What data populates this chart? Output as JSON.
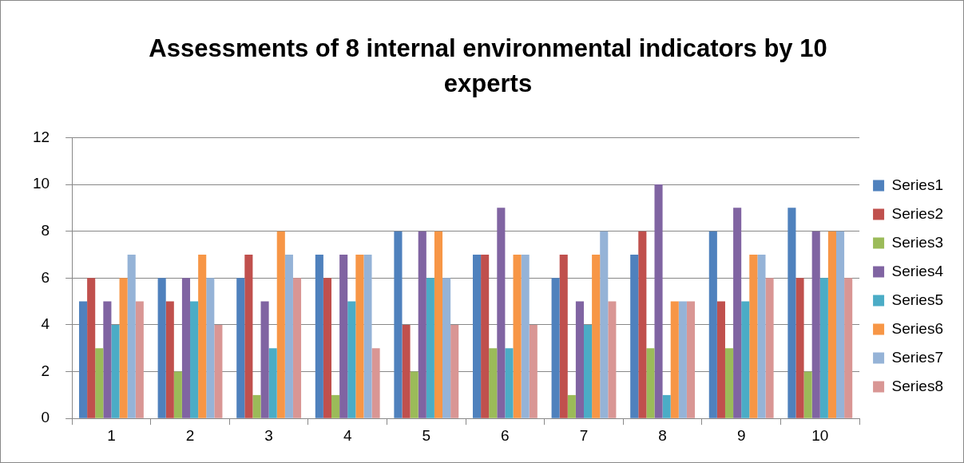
{
  "chart_data": {
    "type": "bar",
    "title": "Assessments of 8 internal environmental indicators by 10 experts",
    "categories": [
      "1",
      "2",
      "3",
      "4",
      "5",
      "6",
      "7",
      "8",
      "9",
      "10"
    ],
    "series": [
      {
        "name": "Series1",
        "color": "#4f81bd",
        "values": [
          5,
          6,
          6,
          7,
          8,
          7,
          6,
          7,
          8,
          9
        ]
      },
      {
        "name": "Series2",
        "color": "#c0504d",
        "values": [
          6,
          5,
          7,
          6,
          4,
          7,
          7,
          8,
          5,
          6
        ]
      },
      {
        "name": "Series3",
        "color": "#9bbb59",
        "values": [
          3,
          2,
          1,
          1,
          2,
          3,
          1,
          3,
          3,
          2
        ]
      },
      {
        "name": "Series4",
        "color": "#8064a2",
        "values": [
          5,
          6,
          5,
          7,
          8,
          9,
          5,
          10,
          9,
          8
        ]
      },
      {
        "name": "Series5",
        "color": "#4bacc6",
        "values": [
          4,
          5,
          3,
          5,
          6,
          3,
          4,
          1,
          5,
          6
        ]
      },
      {
        "name": "Series6",
        "color": "#f79646",
        "values": [
          6,
          7,
          8,
          7,
          8,
          7,
          7,
          5,
          7,
          8
        ]
      },
      {
        "name": "Series7",
        "color": "#95b3d7",
        "values": [
          7,
          6,
          7,
          7,
          6,
          7,
          8,
          5,
          7,
          8
        ]
      },
      {
        "name": "Series8",
        "color": "#d99694",
        "values": [
          5,
          4,
          6,
          3,
          4,
          4,
          5,
          5,
          6,
          6
        ]
      }
    ],
    "ylim": [
      0,
      12
    ],
    "yticks": [
      0,
      2,
      4,
      6,
      8,
      10,
      12
    ],
    "grid": "y",
    "legend": "right"
  }
}
